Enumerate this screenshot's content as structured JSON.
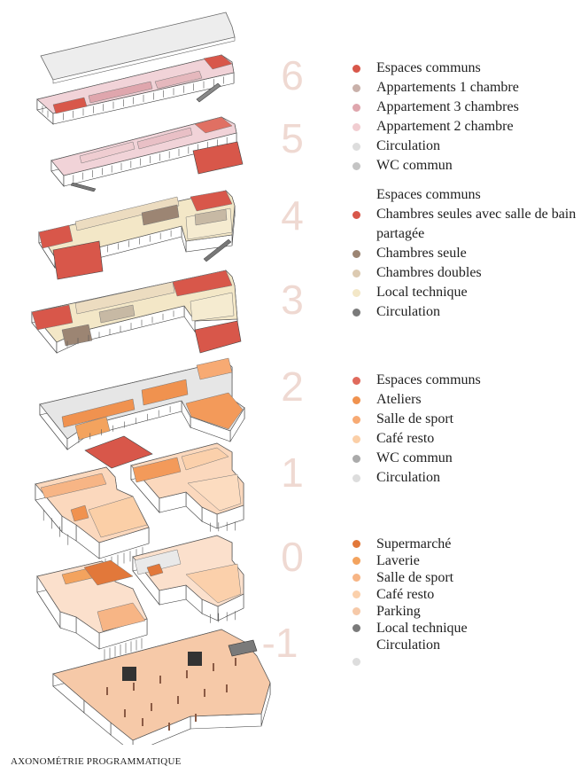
{
  "caption": "AXONOMÉTRIE PROGRAMMATIQUE",
  "levels": [
    "6",
    "5",
    "4",
    "3",
    "2",
    "1",
    "0",
    "-1"
  ],
  "legends": [
    {
      "items": [
        {
          "label": "Espaces communs",
          "color": "#d8574a"
        },
        {
          "label": "Appartements 1 chambre",
          "color": "#c9b1aa"
        },
        {
          "label": "Appartement 3 chambres",
          "color": "#dfa6ad"
        },
        {
          "label": "Appartement 2 chambre",
          "color": "#f1cdd1"
        },
        {
          "label": "Circulation",
          "color": "#dddddd"
        },
        {
          "label": "WC commun",
          "color": "#c4c4c4"
        }
      ]
    },
    {
      "items": [
        {
          "label": "Espaces communs",
          "color": ""
        },
        {
          "label": "Chambres seules avec salle de bain partagée",
          "color": "#d8574a"
        },
        {
          "label": "Chambres seule",
          "color": "#9c8573"
        },
        {
          "label": "Chambres doubles",
          "color": "#dccab1"
        },
        {
          "label": "Local technique",
          "color": "#f3e7c7"
        },
        {
          "label": "Circulation",
          "color": "#7a7a7a"
        },
        {
          "label": "",
          "color": "#dddddd"
        }
      ]
    },
    {
      "items": [
        {
          "label": "Espaces communs",
          "color": "#e06a5c"
        },
        {
          "label": "Ateliers",
          "color": "#f0924f"
        },
        {
          "label": "Salle de sport",
          "color": "#f7aa73"
        },
        {
          "label": "Café resto",
          "color": "#fbcfa7"
        },
        {
          "label": "WC commun",
          "color": "#aaaaaa"
        },
        {
          "label": "Circulation",
          "color": "#dddddd"
        }
      ]
    },
    {
      "items": [
        {
          "label": "Supermarché",
          "color": "#e2783a"
        },
        {
          "label": "Laverie",
          "color": "#f3a35e"
        },
        {
          "label": "Salle de sport",
          "color": "#f7b585"
        },
        {
          "label": "Café resto",
          "color": "#fbd0ab"
        },
        {
          "label": "Parking",
          "color": "#f6c9a8"
        },
        {
          "label": "Local technique",
          "color": "#7a7a7a"
        },
        {
          "label": "Circulation",
          "color": ""
        }
      ]
    }
  ],
  "stray_dot_color": "#dddddd"
}
